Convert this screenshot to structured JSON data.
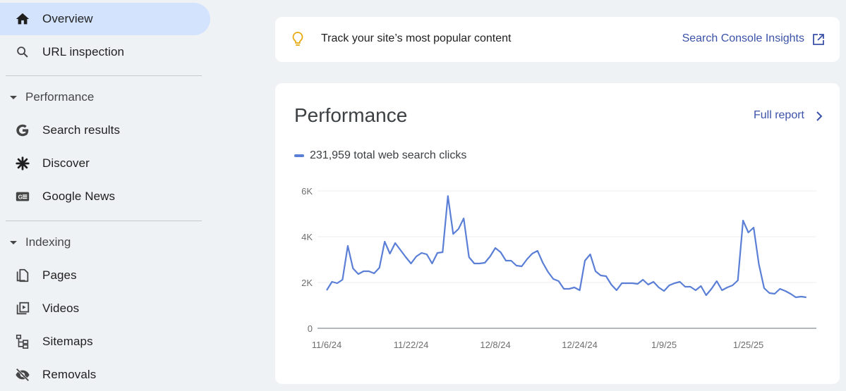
{
  "sidebar": {
    "items": [
      {
        "label": "Overview",
        "icon": "home-icon",
        "active": true
      },
      {
        "label": "URL inspection",
        "icon": "search-icon"
      }
    ],
    "sections": [
      {
        "label": "Performance",
        "items": [
          {
            "label": "Search results",
            "icon": "google-g-icon"
          },
          {
            "label": "Discover",
            "icon": "asterisk-icon"
          },
          {
            "label": "Google News",
            "icon": "google-news-icon"
          }
        ]
      },
      {
        "label": "Indexing",
        "items": [
          {
            "label": "Pages",
            "icon": "pages-icon"
          },
          {
            "label": "Videos",
            "icon": "videos-icon"
          },
          {
            "label": "Sitemaps",
            "icon": "sitemaps-icon"
          },
          {
            "label": "Removals",
            "icon": "removals-icon"
          }
        ]
      }
    ]
  },
  "tip": {
    "icon": "lightbulb-icon",
    "text": "Track your site’s most popular content",
    "link_label": "Search Console Insights",
    "link_icon": "open-in-new-icon"
  },
  "performance": {
    "title": "Performance",
    "full_report_label": "Full report",
    "legend": "231,959 total web search clicks"
  },
  "colors": {
    "accent": "#3b52a8",
    "line": "#5b7fd6",
    "active_nav": "#d3e3fd",
    "background": "#eff2f5",
    "tip_icon": "#e8a80c"
  },
  "chart_data": {
    "type": "line",
    "title": "Performance",
    "series": [
      {
        "name": "231,959 total web search clicks",
        "values": [
          1662,
          2031,
          1969,
          2123,
          3600,
          2615,
          2369,
          2492,
          2492,
          2400,
          2646,
          3785,
          3262,
          3723,
          3415,
          3108,
          2831,
          3138,
          3292,
          3231,
          2831,
          3292,
          3323,
          5780,
          4120,
          4338,
          4800,
          3108,
          2831,
          2831,
          2862,
          3138,
          3508,
          3323,
          2954,
          2954,
          2738,
          2708,
          3015,
          3262,
          3385,
          2862,
          2462,
          2154,
          2062,
          1723,
          1723,
          1785,
          1662,
          2954,
          3231,
          2492,
          2308,
          2277,
          1908,
          1662,
          1969,
          1969,
          1969,
          1938,
          2123,
          1908,
          2031,
          1785,
          1631,
          1877,
          1969,
          2031,
          1815,
          1815,
          1662,
          1846,
          1446,
          1723,
          2062,
          1662,
          1785,
          1877,
          2092,
          4708,
          4185,
          4400,
          2800,
          1754,
          1538,
          1508,
          1723,
          1631,
          1508,
          1354,
          1385,
          1354
        ]
      }
    ],
    "x_start": "11/6/24",
    "x_end": "2/5/25",
    "x_tick_labels": [
      "11/6/24",
      "11/22/24",
      "12/8/24",
      "12/24/24",
      "1/9/25",
      "1/25/25"
    ],
    "x_tick_indices": [
      0,
      16,
      32,
      48,
      64,
      80
    ],
    "y_tick_labels": [
      "0",
      "2K",
      "4K",
      "6K"
    ],
    "y_tick_values": [
      0,
      2000,
      4000,
      6000
    ],
    "ylim": [
      0,
      6000
    ],
    "xlabel": "",
    "ylabel": "",
    "grid": true,
    "legend_position": "top-left"
  }
}
